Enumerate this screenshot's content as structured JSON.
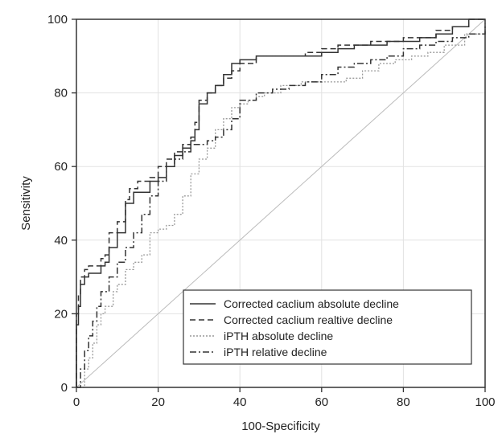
{
  "chart_data": {
    "type": "line",
    "title": "",
    "xlabel": "100-Specificity",
    "ylabel": "Sensitivity",
    "xlim": [
      0,
      100
    ],
    "ylim": [
      0,
      100
    ],
    "xticks": [
      0,
      20,
      40,
      60,
      80,
      100
    ],
    "yticks": [
      0,
      20,
      40,
      60,
      80,
      100
    ],
    "grid": true,
    "legend_position": "bottom-right",
    "reference_line": {
      "x": [
        0,
        100
      ],
      "y": [
        0,
        100
      ],
      "color": "#bbbbbb"
    },
    "series": [
      {
        "name": "Corrected caclium absolute decline",
        "style": "solid",
        "color": "#333333",
        "x": [
          0,
          0,
          0.5,
          1,
          2,
          3,
          5,
          6,
          7,
          8,
          10,
          12,
          14,
          16,
          18,
          20,
          22,
          24,
          26,
          28,
          29,
          30,
          32,
          34,
          36,
          38,
          40,
          44,
          48,
          52,
          56,
          60,
          64,
          68,
          72,
          76,
          80,
          84,
          88,
          92,
          96,
          100
        ],
        "y": [
          0,
          17,
          22,
          28,
          30,
          31,
          31,
          33,
          34,
          38,
          42,
          50,
          53,
          53,
          56,
          57,
          60,
          63,
          65,
          67,
          70,
          77,
          80,
          82,
          85,
          88,
          89,
          90,
          90,
          90,
          90,
          91,
          92,
          93,
          93,
          94,
          94,
          95,
          96,
          98,
          100,
          100
        ]
      },
      {
        "name": "Corrected caclium realtive decline",
        "style": "dashed",
        "color": "#333333",
        "x": [
          0,
          0,
          0.5,
          1,
          2,
          3,
          5,
          6,
          7,
          8,
          10,
          12,
          13,
          15,
          18,
          20,
          22,
          24,
          26,
          28,
          29,
          30,
          32,
          34,
          36,
          38,
          40,
          44,
          48,
          52,
          56,
          60,
          64,
          68,
          72,
          76,
          80,
          84,
          88,
          92,
          96,
          100
        ],
        "y": [
          0,
          20,
          25,
          30,
          32,
          33,
          33,
          35,
          36,
          42,
          45,
          51,
          54,
          56,
          57,
          60,
          62,
          64,
          66,
          68,
          72,
          78,
          80,
          82,
          84,
          86,
          88,
          90,
          90,
          90,
          91,
          92,
          93,
          93,
          94,
          94,
          95,
          95,
          97,
          98,
          100,
          100
        ]
      },
      {
        "name": "iPTH absolute decline",
        "style": "dotted",
        "color": "#999999",
        "x": [
          0,
          2,
          3,
          4,
          5,
          6,
          7,
          9,
          10,
          12,
          14,
          16,
          18,
          20,
          22,
          24,
          26,
          28,
          30,
          32,
          34,
          36,
          38,
          40,
          42,
          44,
          46,
          50,
          55,
          60,
          66,
          70,
          74,
          78,
          82,
          86,
          90,
          95,
          100
        ],
        "y": [
          0,
          5,
          8,
          12,
          17,
          20,
          22,
          26,
          28,
          32,
          34,
          36,
          42,
          43,
          44,
          47,
          52,
          58,
          62,
          65,
          70,
          73,
          76,
          77,
          78,
          79,
          80,
          82,
          83,
          83,
          84,
          86,
          88,
          89,
          90,
          91,
          93,
          96,
          99
        ]
      },
      {
        "name": "iPTH relative decline",
        "style": "dashdot",
        "color": "#333333",
        "x": [
          0,
          1,
          2,
          3,
          4,
          5,
          6,
          8,
          10,
          12,
          14,
          16,
          18,
          20,
          22,
          24,
          26,
          28,
          30,
          32,
          34,
          36,
          38,
          40,
          44,
          48,
          52,
          56,
          60,
          64,
          68,
          72,
          76,
          80,
          84,
          88,
          92,
          96,
          100
        ],
        "y": [
          0,
          5,
          10,
          14,
          18,
          22,
          26,
          30,
          34,
          38,
          42,
          47,
          52,
          56,
          60,
          62,
          64,
          66,
          66,
          67,
          68,
          70,
          73,
          78,
          80,
          81,
          82,
          83,
          85,
          87,
          88,
          89,
          90,
          92,
          93,
          94,
          95,
          96,
          98
        ]
      }
    ]
  }
}
